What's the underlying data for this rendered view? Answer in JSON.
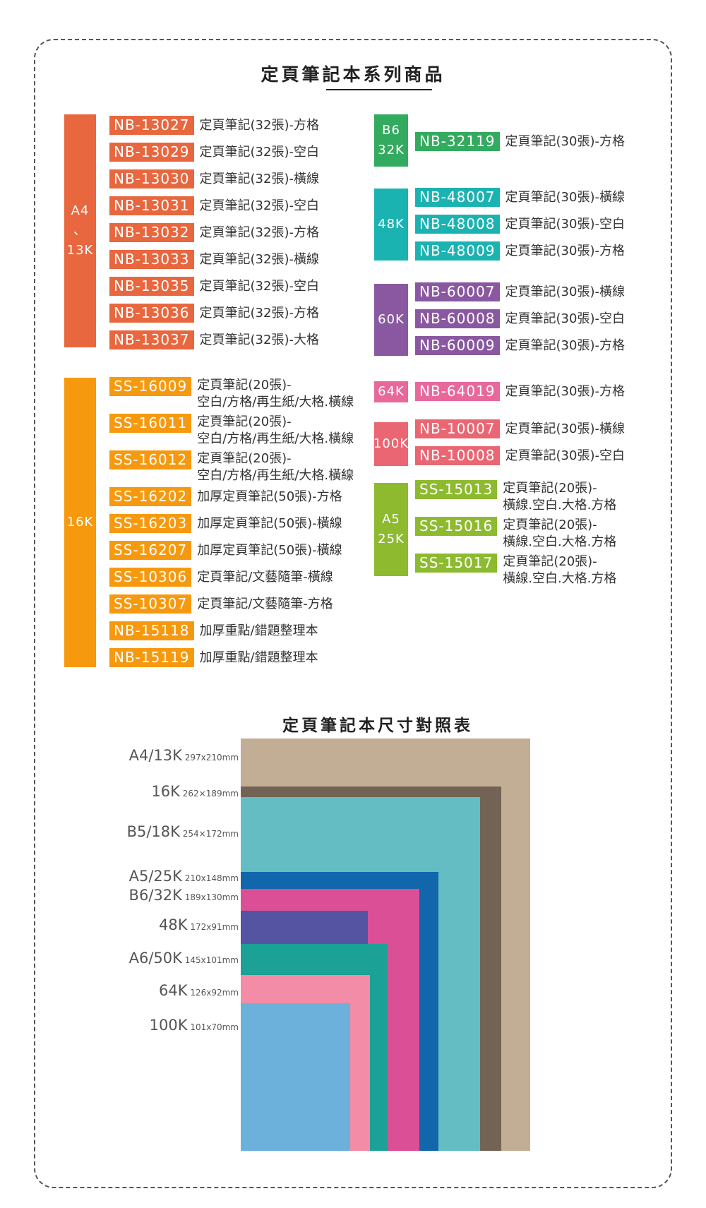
{
  "page_title": "定頁筆記本系列商品",
  "chart_title": "定頁筆記本尺寸對照表",
  "groups": {
    "a4": {
      "label": [
        "A4",
        "、",
        "13K"
      ],
      "color": "#e8673f",
      "items": [
        {
          "code": "NB-13027",
          "desc": "定頁筆記(32張)-方格"
        },
        {
          "code": "NB-13029",
          "desc": "定頁筆記(32張)-空白"
        },
        {
          "code": "NB-13030",
          "desc": "定頁筆記(32張)-橫線"
        },
        {
          "code": "NB-13031",
          "desc": "定頁筆記(32張)-空白"
        },
        {
          "code": "NB-13032",
          "desc": "定頁筆記(32張)-方格"
        },
        {
          "code": "NB-13033",
          "desc": "定頁筆記(32張)-橫線"
        },
        {
          "code": "NB-13035",
          "desc": "定頁筆記(32張)-空白"
        },
        {
          "code": "NB-13036",
          "desc": "定頁筆記(32張)-方格"
        },
        {
          "code": "NB-13037",
          "desc": "定頁筆記(32張)-大格"
        }
      ]
    },
    "k16": {
      "label": "16K",
      "color": "#f7990e",
      "items": [
        {
          "code": "SS-16009",
          "desc1": "定頁筆記(20張)-",
          "desc2": "空白/方格/再生紙/大格.橫線"
        },
        {
          "code": "SS-16011",
          "desc1": "定頁筆記(20張)-",
          "desc2": "空白/方格/再生紙/大格.橫線"
        },
        {
          "code": "SS-16012",
          "desc1": "定頁筆記(20張)-",
          "desc2": "空白/方格/再生紙/大格.橫線"
        },
        {
          "code": "SS-16202",
          "desc": "加厚定頁筆記(50張)-方格"
        },
        {
          "code": "SS-16203",
          "desc": "加厚定頁筆記(50張)-橫線"
        },
        {
          "code": "SS-16207",
          "desc": "加厚定頁筆記(50張)-橫線"
        },
        {
          "code": "SS-10306",
          "desc": "定頁筆記/文藝隨筆-橫線"
        },
        {
          "code": "SS-10307",
          "desc": "定頁筆記/文藝隨筆-方格"
        },
        {
          "code": "NB-15118",
          "desc": "加厚重點/錯題整理本"
        },
        {
          "code": "NB-15119",
          "desc": "加厚重點/錯題整理本"
        }
      ]
    },
    "b6": {
      "label": [
        "B6",
        "32K"
      ],
      "color": "#33ab5f",
      "items": [
        {
          "code": "NB-32119",
          "desc": "定頁筆記(30張)-方格"
        }
      ]
    },
    "k48": {
      "label": "48K",
      "color": "#1bb3b2",
      "items": [
        {
          "code": "NB-48007",
          "desc": "定頁筆記(30張)-橫線"
        },
        {
          "code": "NB-48008",
          "desc": "定頁筆記(30張)-空白"
        },
        {
          "code": "NB-48009",
          "desc": "定頁筆記(30張)-方格"
        }
      ]
    },
    "k60": {
      "label": "60K",
      "color": "#8a58a1",
      "items": [
        {
          "code": "NB-60007",
          "desc": "定頁筆記(30張)-橫線"
        },
        {
          "code": "NB-60008",
          "desc": "定頁筆記(30張)-空白"
        },
        {
          "code": "NB-60009",
          "desc": "定頁筆記(30張)-方格"
        }
      ]
    },
    "k64": {
      "label": "64K",
      "color": "#e8689c",
      "items": [
        {
          "code": "NB-64019",
          "desc": "定頁筆記(30張)-方格"
        }
      ]
    },
    "k100": {
      "label": "100K",
      "color": "#ea6672",
      "items": [
        {
          "code": "NB-10007",
          "desc": "定頁筆記(30張)-橫線"
        },
        {
          "code": "NB-10008",
          "desc": "定頁筆記(30張)-空白"
        }
      ]
    },
    "a5": {
      "label": [
        "A5",
        "25K"
      ],
      "color": "#8dba2f",
      "items": [
        {
          "code": "SS-15013",
          "desc1": "定頁筆記(20張)-",
          "desc2": "橫線.空白.大格.方格"
        },
        {
          "code": "SS-15016",
          "desc1": "定頁筆記(20張)-",
          "desc2": "橫線.空白.大格.方格"
        },
        {
          "code": "SS-15017",
          "desc1": "定頁筆記(20張)-",
          "desc2": "橫線.空白.大格.方格"
        }
      ]
    }
  },
  "sizes": [
    {
      "name": "A4/13K",
      "dim": "297x210mm",
      "color": "#c2ae95"
    },
    {
      "name": "16K",
      "dim": "262×189mm",
      "color": "#736354"
    },
    {
      "name": "B5/18K",
      "dim": "254×172mm",
      "color": "#65bdc4"
    },
    {
      "name": "A5/25K",
      "dim": "210x148mm",
      "color": "#1266ab"
    },
    {
      "name": "B6/32K",
      "dim": "189x130mm",
      "color": "#da4f96"
    },
    {
      "name": "48K",
      "dim": "172x91mm",
      "color": "#5554a2"
    },
    {
      "name": "A6/50K",
      "dim": "145x101mm",
      "color": "#1ca196"
    },
    {
      "name": "64K",
      "dim": "126x92mm",
      "color": "#f28ca7"
    },
    {
      "name": "100K",
      "dim": "101x70mm",
      "color": "#6bb1dc"
    }
  ]
}
